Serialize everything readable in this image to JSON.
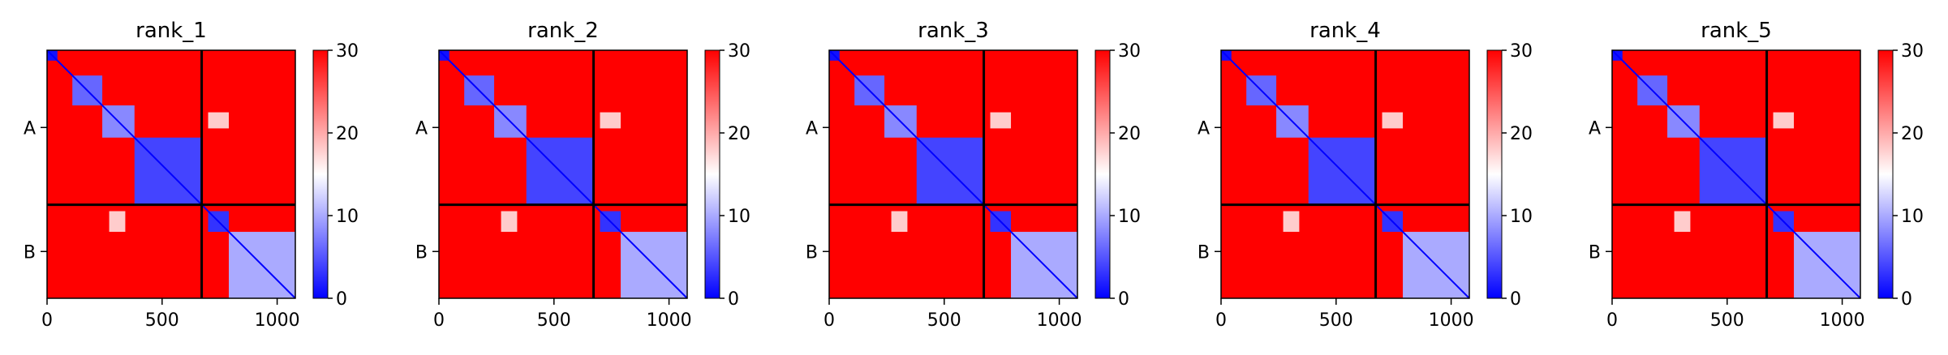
{
  "figure": {
    "colorscale": {
      "low": "#0000ff",
      "mid": "#ffffff",
      "high": "#ff0000",
      "min": 0,
      "max": 30
    },
    "colorbar_ticks": [
      0,
      10,
      20,
      30
    ],
    "x_ticks": [
      0,
      500,
      1000
    ],
    "chain_labels": [
      "A",
      "B"
    ]
  },
  "chart_data": [
    {
      "type": "heatmap",
      "title": "rank_1",
      "x_range": [
        0,
        1079
      ],
      "y_range": [
        0,
        1079
      ],
      "chain_boundaries": [
        {
          "name": "A",
          "start": 0,
          "end": 672
        },
        {
          "name": "B",
          "start": 672,
          "end": 1079
        }
      ],
      "low_error_blocks": [
        {
          "x": [
            0,
            45
          ],
          "y": [
            0,
            45
          ],
          "value": 1
        },
        {
          "x": [
            110,
            240
          ],
          "y": [
            110,
            240
          ],
          "value": 6
        },
        {
          "x": [
            240,
            380
          ],
          "y": [
            240,
            380
          ],
          "value": 8
        },
        {
          "x": [
            380,
            672
          ],
          "y": [
            380,
            672
          ],
          "value": 4
        },
        {
          "x": [
            700,
            790
          ],
          "y": [
            700,
            790
          ],
          "value": 3
        },
        {
          "x": [
            790,
            1079
          ],
          "y": [
            790,
            1079
          ],
          "value": 10
        },
        {
          "x": [
            700,
            790
          ],
          "y": [
            270,
            340
          ],
          "value": 18
        },
        {
          "x": [
            270,
            340
          ],
          "y": [
            700,
            790
          ],
          "value": 18
        }
      ],
      "colorbar_range": [
        0,
        30
      ]
    },
    {
      "type": "heatmap",
      "title": "rank_2",
      "x_range": [
        0,
        1079
      ],
      "y_range": [
        0,
        1079
      ],
      "chain_boundaries": [
        {
          "name": "A",
          "start": 0,
          "end": 672
        },
        {
          "name": "B",
          "start": 672,
          "end": 1079
        }
      ],
      "low_error_blocks": [
        {
          "x": [
            0,
            45
          ],
          "y": [
            0,
            45
          ],
          "value": 1
        },
        {
          "x": [
            110,
            240
          ],
          "y": [
            110,
            240
          ],
          "value": 6
        },
        {
          "x": [
            240,
            380
          ],
          "y": [
            240,
            380
          ],
          "value": 8
        },
        {
          "x": [
            380,
            672
          ],
          "y": [
            380,
            672
          ],
          "value": 4
        },
        {
          "x": [
            700,
            790
          ],
          "y": [
            700,
            790
          ],
          "value": 3
        },
        {
          "x": [
            790,
            1079
          ],
          "y": [
            790,
            1079
          ],
          "value": 10
        },
        {
          "x": [
            700,
            790
          ],
          "y": [
            270,
            340
          ],
          "value": 18
        },
        {
          "x": [
            270,
            340
          ],
          "y": [
            700,
            790
          ],
          "value": 18
        }
      ],
      "colorbar_range": [
        0,
        30
      ]
    },
    {
      "type": "heatmap",
      "title": "rank_3",
      "x_range": [
        0,
        1079
      ],
      "y_range": [
        0,
        1079
      ],
      "chain_boundaries": [
        {
          "name": "A",
          "start": 0,
          "end": 672
        },
        {
          "name": "B",
          "start": 672,
          "end": 1079
        }
      ],
      "low_error_blocks": [
        {
          "x": [
            0,
            45
          ],
          "y": [
            0,
            45
          ],
          "value": 1
        },
        {
          "x": [
            110,
            240
          ],
          "y": [
            110,
            240
          ],
          "value": 6
        },
        {
          "x": [
            240,
            380
          ],
          "y": [
            240,
            380
          ],
          "value": 8
        },
        {
          "x": [
            380,
            672
          ],
          "y": [
            380,
            672
          ],
          "value": 4
        },
        {
          "x": [
            700,
            790
          ],
          "y": [
            700,
            790
          ],
          "value": 3
        },
        {
          "x": [
            790,
            1079
          ],
          "y": [
            790,
            1079
          ],
          "value": 10
        },
        {
          "x": [
            700,
            790
          ],
          "y": [
            270,
            340
          ],
          "value": 18
        },
        {
          "x": [
            270,
            340
          ],
          "y": [
            700,
            790
          ],
          "value": 18
        }
      ],
      "colorbar_range": [
        0,
        30
      ]
    },
    {
      "type": "heatmap",
      "title": "rank_4",
      "x_range": [
        0,
        1079
      ],
      "y_range": [
        0,
        1079
      ],
      "chain_boundaries": [
        {
          "name": "A",
          "start": 0,
          "end": 672
        },
        {
          "name": "B",
          "start": 672,
          "end": 1079
        }
      ],
      "low_error_blocks": [
        {
          "x": [
            0,
            45
          ],
          "y": [
            0,
            45
          ],
          "value": 1
        },
        {
          "x": [
            110,
            240
          ],
          "y": [
            110,
            240
          ],
          "value": 6
        },
        {
          "x": [
            240,
            380
          ],
          "y": [
            240,
            380
          ],
          "value": 8
        },
        {
          "x": [
            380,
            672
          ],
          "y": [
            380,
            672
          ],
          "value": 4
        },
        {
          "x": [
            700,
            790
          ],
          "y": [
            700,
            790
          ],
          "value": 3
        },
        {
          "x": [
            790,
            1079
          ],
          "y": [
            790,
            1079
          ],
          "value": 10
        },
        {
          "x": [
            700,
            790
          ],
          "y": [
            270,
            340
          ],
          "value": 18
        },
        {
          "x": [
            270,
            340
          ],
          "y": [
            700,
            790
          ],
          "value": 18
        }
      ],
      "colorbar_range": [
        0,
        30
      ]
    },
    {
      "type": "heatmap",
      "title": "rank_5",
      "x_range": [
        0,
        1079
      ],
      "y_range": [
        0,
        1079
      ],
      "chain_boundaries": [
        {
          "name": "A",
          "start": 0,
          "end": 672
        },
        {
          "name": "B",
          "start": 672,
          "end": 1079
        }
      ],
      "low_error_blocks": [
        {
          "x": [
            0,
            45
          ],
          "y": [
            0,
            45
          ],
          "value": 1
        },
        {
          "x": [
            110,
            240
          ],
          "y": [
            110,
            240
          ],
          "value": 6
        },
        {
          "x": [
            240,
            380
          ],
          "y": [
            240,
            380
          ],
          "value": 8
        },
        {
          "x": [
            380,
            672
          ],
          "y": [
            380,
            672
          ],
          "value": 4
        },
        {
          "x": [
            700,
            790
          ],
          "y": [
            700,
            790
          ],
          "value": 3
        },
        {
          "x": [
            790,
            1079
          ],
          "y": [
            790,
            1079
          ],
          "value": 10
        },
        {
          "x": [
            700,
            790
          ],
          "y": [
            270,
            340
          ],
          "value": 18
        },
        {
          "x": [
            270,
            340
          ],
          "y": [
            700,
            790
          ],
          "value": 18
        }
      ],
      "colorbar_range": [
        0,
        30
      ]
    }
  ]
}
